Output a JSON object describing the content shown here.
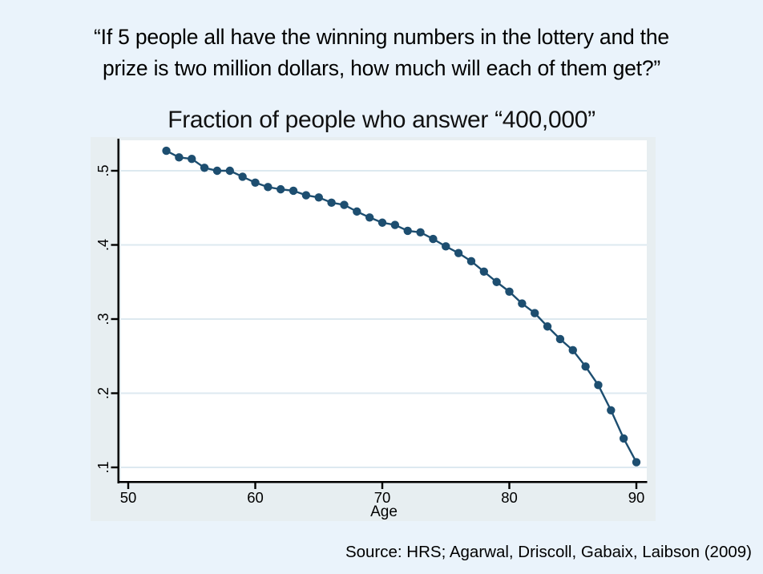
{
  "quote": {
    "line1": "“If 5 people all have the winning numbers in the lottery and the",
    "line2": "prize is two million dollars, how much will each of them get?”"
  },
  "source": {
    "text": "Source: HRS; Agarwal, Driscoll, Gabaix, Laibson (2009)"
  },
  "chart_data": {
    "type": "line",
    "title": "Fraction of people who answer “400,000”",
    "xlabel": "Age",
    "ylabel": "",
    "x": [
      53,
      54,
      55,
      56,
      57,
      58,
      59,
      60,
      61,
      62,
      63,
      64,
      65,
      66,
      67,
      68,
      69,
      70,
      71,
      72,
      73,
      74,
      75,
      76,
      77,
      78,
      79,
      80,
      81,
      82,
      83,
      84,
      85,
      86,
      87,
      88,
      89,
      90
    ],
    "values": [
      0.527,
      0.518,
      0.516,
      0.504,
      0.5,
      0.5,
      0.492,
      0.484,
      0.478,
      0.475,
      0.473,
      0.467,
      0.464,
      0.457,
      0.454,
      0.445,
      0.437,
      0.43,
      0.427,
      0.419,
      0.417,
      0.408,
      0.398,
      0.389,
      0.378,
      0.364,
      0.35,
      0.337,
      0.321,
      0.308,
      0.29,
      0.273,
      0.258,
      0.236,
      0.211,
      0.177,
      0.139,
      0.107
    ],
    "xticks": [
      50,
      60,
      70,
      80,
      90
    ],
    "yticks": [
      ".1",
      ".2",
      ".3",
      ".4",
      ".5"
    ],
    "ytick_values": [
      0.1,
      0.2,
      0.3,
      0.4,
      0.5
    ],
    "xlim": [
      49.4,
      91.5
    ],
    "ylim": [
      0.082,
      0.541
    ],
    "grid": "horizontal",
    "legend": "none",
    "marker": "filled-circle",
    "line_color": "#1d4e70",
    "marker_color": "#1d4e70",
    "grid_color": "#dde9f0",
    "axis_color": "#000000",
    "plot_bg": "#ffffff",
    "graph_bg": "#e7eef1",
    "slide_bg": "#eaf3fb",
    "text_color": "#000000"
  }
}
